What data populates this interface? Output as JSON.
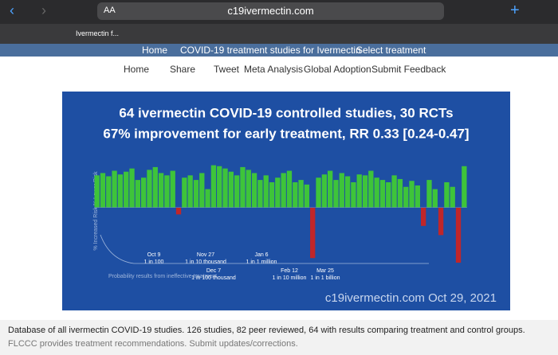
{
  "browser": {
    "text_size": "AA",
    "url": "c19ivermectin.com",
    "tab": "Ivermectin f..."
  },
  "nav": [
    "Home",
    "COVID-19 treatment studies for Ivermectin",
    "Select treatment"
  ],
  "subnav": [
    "Home",
    "Share",
    "Tweet",
    "Meta Analysis",
    "Global Adoption",
    "Submit Feedback"
  ],
  "chart_data": {
    "type": "bar",
    "title": "64 ivermectin COVID-19 controlled studies, 30 RCTs",
    "subtitle": "67% improvement for early treatment, RR 0.33 [0.24-0.47]",
    "y_label": "% Increased Risk % Lower Risk",
    "values": [
      70,
      75,
      68,
      80,
      72,
      78,
      85,
      60,
      65,
      82,
      88,
      75,
      70,
      80,
      -15,
      65,
      70,
      60,
      75,
      40,
      92,
      90,
      85,
      78,
      70,
      88,
      82,
      75,
      60,
      70,
      55,
      65,
      75,
      80,
      55,
      60,
      50,
      -110,
      65,
      72,
      80,
      60,
      75,
      68,
      55,
      72,
      70,
      80,
      65,
      60,
      55,
      70,
      62,
      45,
      58,
      48,
      -40,
      60,
      40,
      -60,
      55,
      45,
      -120,
      90
    ],
    "colors": {
      "positive": "#3ec43a",
      "negative": "#c0262a"
    },
    "ylim": [
      -120,
      100
    ],
    "timeline": [
      {
        "date": "Oct 9",
        "label": "1 in 100"
      },
      {
        "date": "Dec 7",
        "label": "1 in 100 thousand"
      },
      {
        "date": "Nov 27",
        "label": "1 in 10 thousand"
      },
      {
        "date": "Feb 12",
        "label": "1 in 10 million"
      },
      {
        "date": "Jan 6",
        "label": "1 in 1 million"
      },
      {
        "date": "Mar 25",
        "label": "1 in 1 billion"
      }
    ],
    "timeline_note": "Probability results from ineffective treatment",
    "watermark": "c19ivermectin.com Oct 29, 2021"
  },
  "footer": {
    "line1": "Database of all ivermectin COVID-19 studies. 126 studies, 82 peer reviewed, 64 with results comparing treatment and control groups.",
    "line2": "FLCCC provides treatment recommendations. Submit updates/corrections."
  }
}
